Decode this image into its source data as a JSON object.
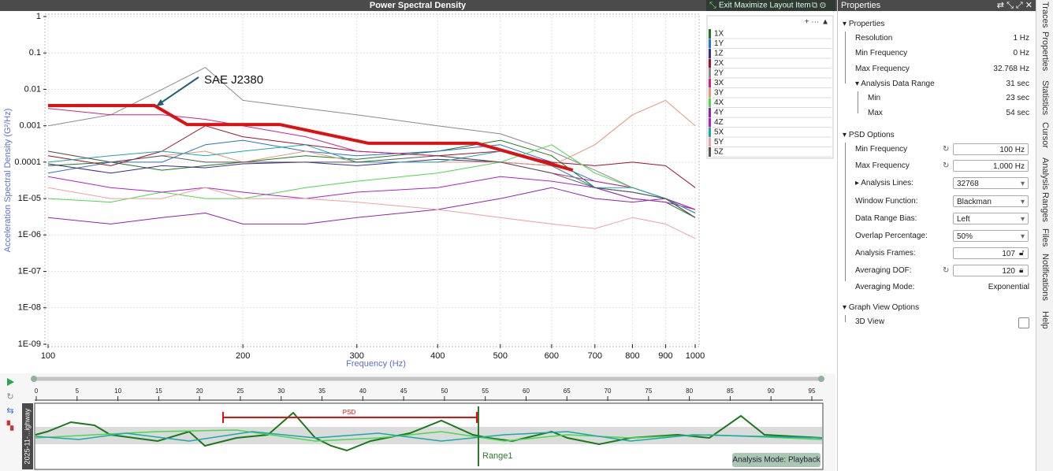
{
  "header": {
    "title": "Power Spectral Density",
    "exit_button": "Exit Maximize Layout Item",
    "panel_title": "Properties"
  },
  "chart_data": {
    "type": "line",
    "xlabel": "Frequency (Hz)",
    "ylabel": "Acceleration Spectral Density (G²/Hz)",
    "x_scale": "log",
    "y_scale": "log",
    "xlim": [
      100,
      1000
    ],
    "ylim": [
      1e-09,
      1
    ],
    "xticks": [
      100,
      200,
      300,
      400,
      500,
      600,
      700,
      800,
      900,
      1000
    ],
    "yticks": [
      1,
      0.1,
      0.01,
      0.001,
      0.0001,
      {
        "value": 1e-05,
        "label": "1E-05"
      },
      {
        "value": 1e-06,
        "label": "1E-06"
      },
      {
        "value": 1e-07,
        "label": "1E-07"
      },
      {
        "value": 1e-08,
        "label": "1E-08"
      },
      {
        "value": 1e-09,
        "label": "1E-09"
      }
    ],
    "grid": true,
    "x": [
      100,
      125,
      150,
      175,
      200,
      250,
      300,
      400,
      500,
      600,
      700,
      800,
      900,
      1000
    ],
    "series": [
      {
        "name": "1X",
        "color": "#1b7a1b",
        "values": [
          8e-05,
          0.0001,
          6e-05,
          8e-05,
          0.0001,
          0.00015,
          0.00012,
          0.0002,
          0.0004,
          0.00015,
          2e-05,
          1e-05,
          8e-06,
          3e-06
        ]
      },
      {
        "name": "1Y",
        "color": "#2a6fd0",
        "values": [
          5e-05,
          0.0001,
          0.0001,
          0.0003,
          0.0004,
          0.0002,
          0.00015,
          0.0002,
          0.0003,
          0.0001,
          3e-05,
          2e-05,
          1e-05,
          5e-06
        ]
      },
      {
        "name": "1Z",
        "color": "#3b2b8f",
        "values": [
          9e-05,
          5e-05,
          8e-05,
          7e-05,
          9e-05,
          0.0001,
          8e-05,
          0.00012,
          0.0001,
          8e-05,
          2e-05,
          1.5e-05,
          1e-05,
          4e-06
        ]
      },
      {
        "name": "2X",
        "color": "#a0102a",
        "values": [
          0.00015,
          8e-05,
          0.0002,
          0.001,
          0.0005,
          0.0003,
          0.0002,
          0.00015,
          0.0002,
          0.0001,
          8e-05,
          0.0001,
          8e-05,
          2e-05
        ]
      },
      {
        "name": "2Y",
        "color": "#8a8a8a",
        "values": [
          0.001,
          0.002,
          0.01,
          0.04,
          0.005,
          0.003,
          0.002,
          0.001,
          0.0006,
          0.0002,
          6e-05,
          2e-05,
          1e-05,
          5e-06
        ]
      },
      {
        "name": "3X",
        "color": "#d1208a",
        "values": [
          0.003,
          0.002,
          0.002,
          0.0015,
          0.001,
          0.0005,
          0.0002,
          0.00015,
          0.0001,
          5e-05,
          3e-05,
          2e-05,
          1e-05,
          5e-06
        ]
      },
      {
        "name": "3Y",
        "color": "#e8957a",
        "values": [
          0.0002,
          0.0001,
          0.00015,
          0.0002,
          0.0001,
          0.0002,
          0.0001,
          0.0001,
          0.0001,
          8e-05,
          0.0003,
          0.002,
          0.005,
          0.001
        ]
      },
      {
        "name": "4X",
        "color": "#4bd84b",
        "values": [
          1e-05,
          8e-06,
          1.5e-05,
          1e-05,
          1e-05,
          2e-05,
          3e-05,
          5e-05,
          0.0001,
          0.0003,
          5e-05,
          2e-05,
          1e-05,
          3e-06
        ]
      },
      {
        "name": "4Y",
        "color": "#8e24aa",
        "values": [
          3e-06,
          2e-06,
          3e-06,
          4e-06,
          2e-06,
          2e-06,
          3e-06,
          5e-06,
          1e-05,
          2e-05,
          1e-05,
          8e-06,
          1e-05,
          3e-06
        ]
      },
      {
        "name": "4Z",
        "color": "#b020c8",
        "values": [
          4e-05,
          2e-05,
          1.5e-05,
          2e-05,
          1.5e-05,
          1e-05,
          1.5e-05,
          2e-05,
          4e-05,
          3e-05,
          2e-05,
          1e-05,
          8e-06,
          5e-06
        ]
      },
      {
        "name": "5X",
        "color": "#1aa8a8",
        "values": [
          0.0001,
          0.00015,
          0.0002,
          0.00015,
          0.0002,
          0.0003,
          0.0001,
          0.0001,
          0.0002,
          8e-05,
          2e-05,
          2e-05,
          1e-05,
          4e-06
        ]
      },
      {
        "name": "5Y",
        "color": "#f0a0a0",
        "values": [
          2e-05,
          1e-05,
          1e-05,
          2e-05,
          1e-05,
          1e-05,
          8e-06,
          5e-06,
          3e-06,
          2e-06,
          1.5e-06,
          3e-06,
          2e-06,
          8e-07
        ]
      },
      {
        "name": "5Z",
        "color": "#555555",
        "values": [
          0.0002,
          0.0001,
          0.00015,
          0.0001,
          0.0001,
          0.0001,
          0.0001,
          0.00015,
          0.0001,
          5e-05,
          2e-05,
          1.5e-05,
          1e-05,
          3e-06
        ]
      }
    ],
    "reference": {
      "label": "SAE J2380",
      "color": "#e01010",
      "x": [
        100,
        146,
        164,
        228,
        313,
        460,
        647
      ],
      "values": [
        0.0036,
        0.0036,
        0.00108,
        0.00108,
        0.00033,
        0.00033,
        6e-05
      ]
    }
  },
  "timeline": {
    "ticks": [
      0,
      5,
      10,
      15,
      20,
      25,
      30,
      35,
      40,
      45,
      50,
      55,
      60,
      65,
      70,
      75,
      80,
      85,
      90,
      95
    ],
    "range_label": "PSD",
    "range_name": "Range1",
    "mode": "Analysis Mode: Playback",
    "file": "2025-11-...ighway"
  },
  "properties": {
    "general": {
      "heading": "Properties",
      "rows": [
        [
          "Resolution",
          "1 Hz"
        ],
        [
          "Min Frequency",
          "0 Hz"
        ],
        [
          "Max Frequency",
          "32.768 Hz"
        ],
        [
          "Analysis Data Range",
          "31 sec"
        ],
        [
          "Min",
          "23 sec"
        ],
        [
          "Max",
          "54 sec"
        ]
      ]
    },
    "psd": {
      "heading": "PSD Options",
      "rows": [
        [
          "Min Frequency",
          "100 Hz"
        ],
        [
          "Max Frequency",
          "1,000 Hz"
        ],
        [
          "Analysis Lines:",
          "32768"
        ],
        [
          "Window Function:",
          "Blackman"
        ],
        [
          "Data Range Bias:",
          "Left"
        ],
        [
          "Overlap Percentage:",
          "50%"
        ],
        [
          "Analysis Frames:",
          "107"
        ],
        [
          "Averaging DOF:",
          "120"
        ],
        [
          "Averaging Mode:",
          "Exponential"
        ]
      ]
    },
    "graph": {
      "heading": "Graph View Options",
      "rows": [
        [
          "3D View"
        ]
      ]
    }
  },
  "side_tabs": [
    "Traces",
    "Properties",
    "Statistics",
    "Cursor",
    "Analysis Ranges",
    "Files",
    "Notifications",
    "Help"
  ]
}
